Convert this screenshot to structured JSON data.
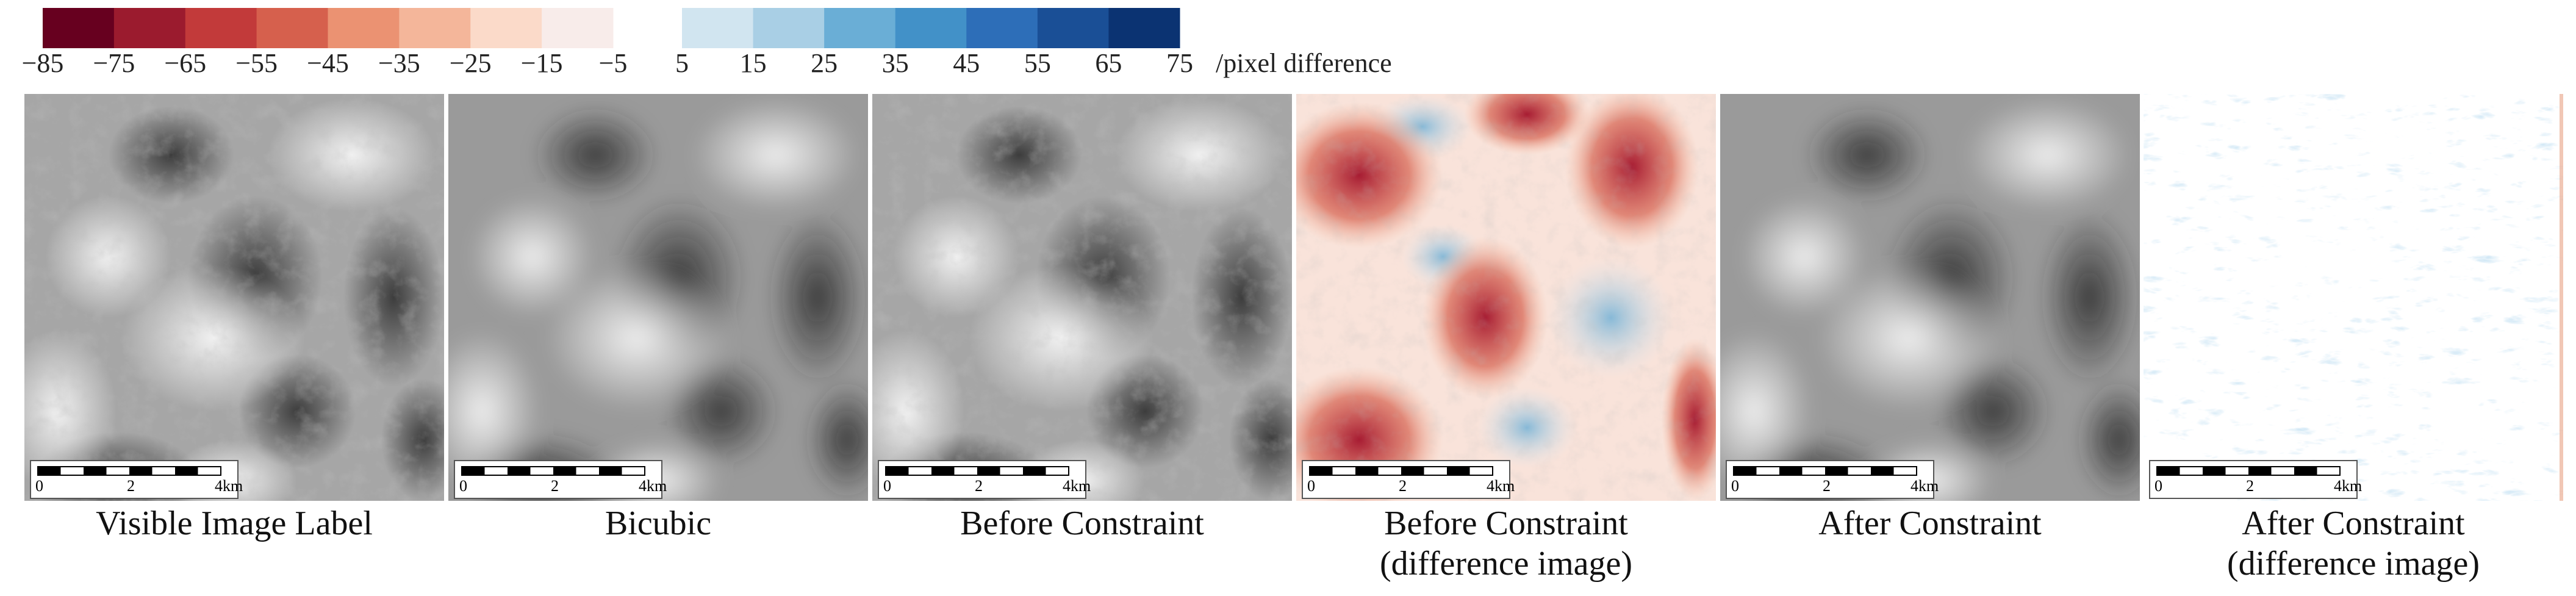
{
  "colorbar": {
    "negative": {
      "colors": [
        "#67001f",
        "#9b1b2e",
        "#c23a3a",
        "#d6604d",
        "#eb9272",
        "#f4b69a",
        "#fbdac9",
        "#f8ecea"
      ],
      "ticks": [
        "−85",
        "−75",
        "−65",
        "−55",
        "−45",
        "−35",
        "−25",
        "−15",
        "−5"
      ]
    },
    "positive": {
      "colors": [
        "#d1e5f0",
        "#a9cfe5",
        "#6aaed6",
        "#4291c8",
        "#2d6eb8",
        "#1a4f96",
        "#0b3372"
      ],
      "ticks": [
        "5",
        "15",
        "25",
        "35",
        "45",
        "55",
        "65",
        "75"
      ]
    },
    "unit": "/pixel difference"
  },
  "panels": [
    {
      "caption": [
        "Visible Image Label"
      ],
      "style": "gray-sharp",
      "scale_bar": [
        "0",
        "2",
        "4km"
      ]
    },
    {
      "caption": [
        "Bicubic"
      ],
      "style": "gray-blur",
      "scale_bar": [
        "0",
        "2",
        "4km"
      ]
    },
    {
      "caption": [
        "Before Constraint"
      ],
      "style": "gray-sharp",
      "scale_bar": [
        "0",
        "2",
        "4km"
      ]
    },
    {
      "caption": [
        "Before Constraint",
        "(difference image)"
      ],
      "style": "diff-strong",
      "scale_bar": [
        "0",
        "2",
        "4km"
      ]
    },
    {
      "caption": [
        "After Constraint"
      ],
      "style": "gray-blur",
      "scale_bar": [
        "0",
        "2",
        "4km"
      ]
    },
    {
      "caption": [
        "After Constraint",
        "(difference image)"
      ],
      "style": "diff-weak",
      "scale_bar": [
        "0",
        "2",
        "4km"
      ]
    }
  ]
}
